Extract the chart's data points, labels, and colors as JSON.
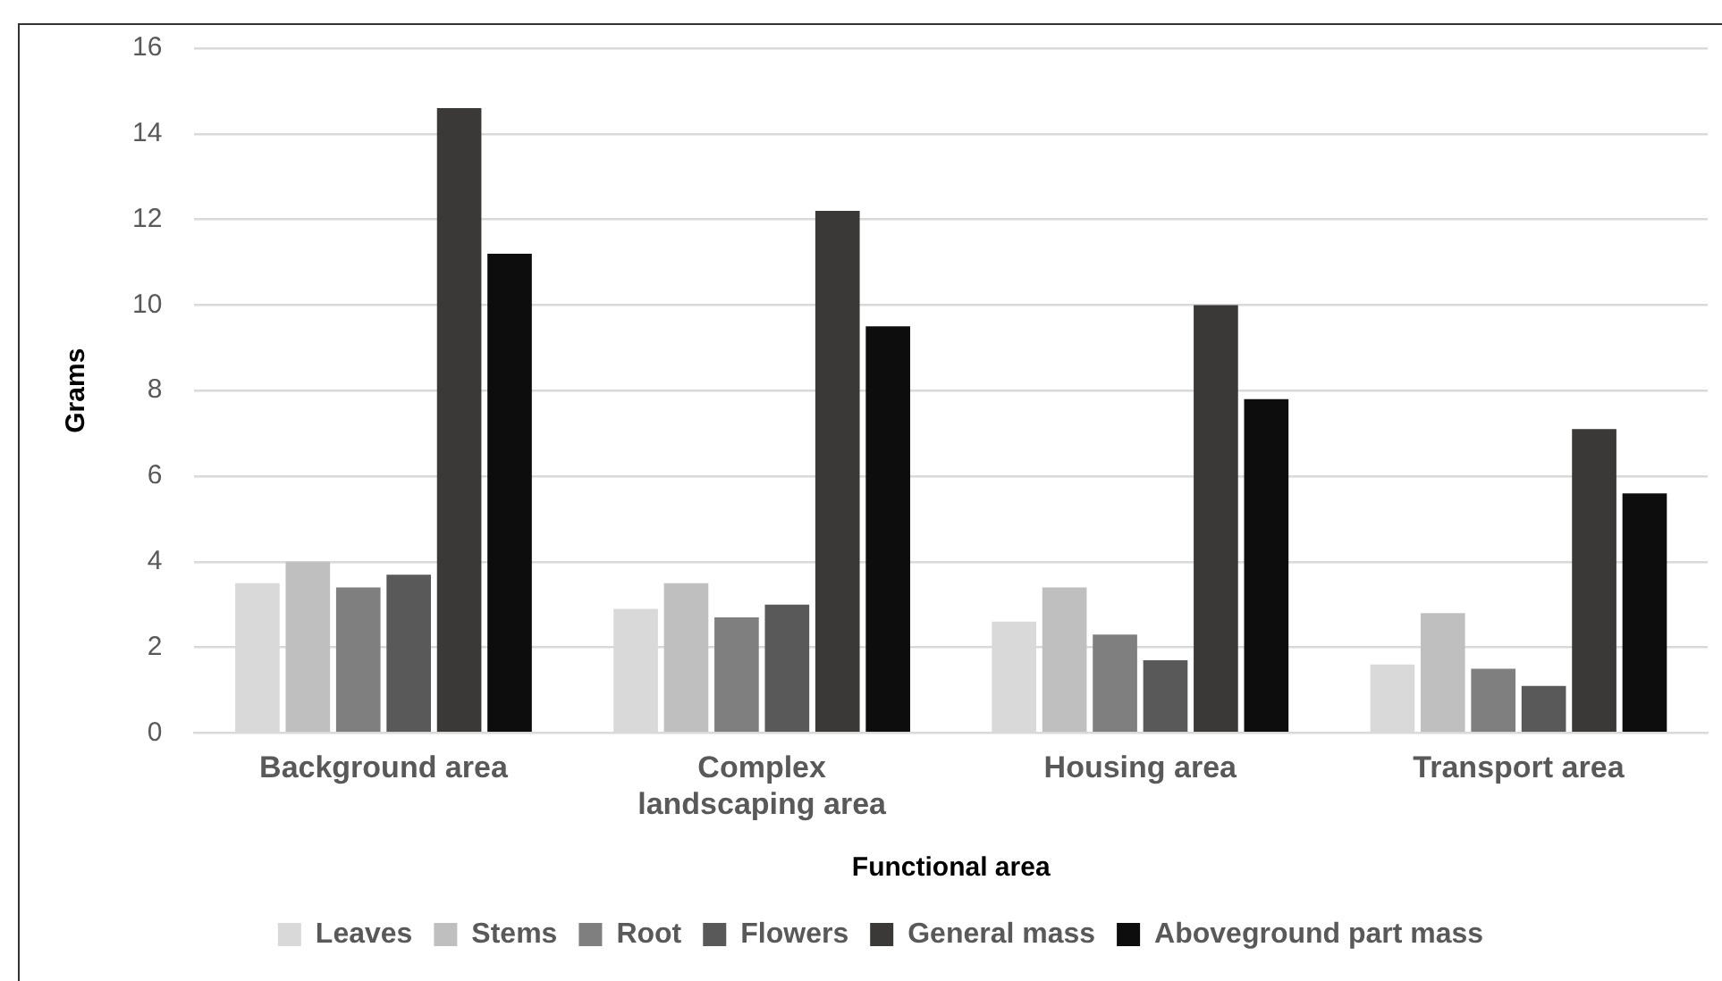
{
  "chart_data": {
    "type": "bar",
    "xlabel": "Functional area",
    "ylabel": "Grams",
    "categories": [
      "Background area",
      "Complex landscaping area",
      "Housing area",
      "Transport area"
    ],
    "series": [
      {
        "name": "Leaves",
        "color": "#d9d9d9",
        "values": [
          3.5,
          2.9,
          2.6,
          1.6
        ]
      },
      {
        "name": "Stems",
        "color": "#bfbfbf",
        "values": [
          4.0,
          3.5,
          3.4,
          2.8
        ]
      },
      {
        "name": "Root",
        "color": "#7f7f7f",
        "values": [
          3.4,
          2.7,
          2.3,
          1.5
        ]
      },
      {
        "name": "Flowers",
        "color": "#595959",
        "values": [
          3.7,
          3.0,
          1.7,
          1.1
        ]
      },
      {
        "name": "General mass",
        "color": "#3a3937",
        "values": [
          14.6,
          12.2,
          10.0,
          7.1
        ]
      },
      {
        "name": "Aboveground part mass",
        "color": "#0d0d0d",
        "values": [
          11.2,
          9.5,
          7.8,
          5.6
        ]
      }
    ],
    "ylim": [
      0,
      16
    ],
    "yticks": [
      0,
      2,
      4,
      6,
      8,
      10,
      12,
      14,
      16
    ],
    "grid": "y",
    "legend": "bottom"
  }
}
